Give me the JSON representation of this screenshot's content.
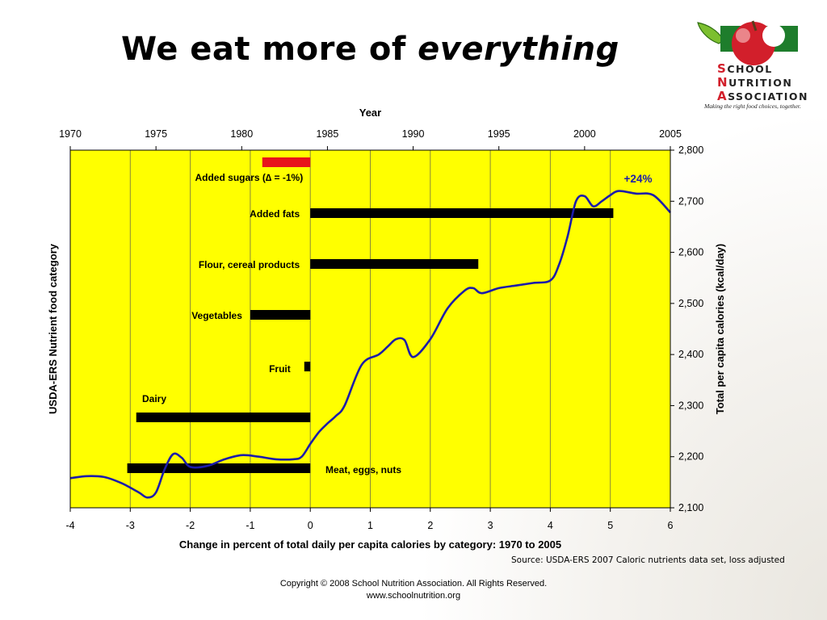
{
  "slide": {
    "title_prefix": "We eat more of ",
    "title_emphasis": "everything",
    "logo_lines": [
      {
        "cap": "S",
        "rest": "CHOOL"
      },
      {
        "cap": "N",
        "rest": "UTRITION"
      },
      {
        "cap": "A",
        "rest": "SSOCIATION"
      }
    ],
    "logo_tagline": "Making the right food choices, together.",
    "source": "Source: USDA-ERS 2007 Caloric nutrients data set, loss adjusted",
    "copyright": "Copyright © 2008 School Nutrition Association.  All Rights Reserved.",
    "website": "www.schoolnutrition.org"
  },
  "chart_data": {
    "type": "bar",
    "background_color": "#ffff00",
    "grid": true,
    "bars": {
      "orientation": "horizontal",
      "xlabel": "Change in percent of total daily per capita calories by category: 1970 to 2005",
      "ylabel": "USDA-ERS Nutrient food category",
      "xlim": [
        -4,
        6
      ],
      "xticks": [
        "-4",
        "-3",
        "-2",
        "-1",
        "0",
        "1",
        "2",
        "3",
        "4",
        "5",
        "6"
      ],
      "categories": [
        {
          "label": "Added sugars (∆ = -1%)",
          "value": -0.8,
          "color": "#e8141b"
        },
        {
          "label": "Added fats",
          "value": 5.05,
          "color": "#000000"
        },
        {
          "label": "Flour, cereal products",
          "value": 2.8,
          "color": "#000000"
        },
        {
          "label": "Vegetables",
          "value": -1.0,
          "color": "#000000"
        },
        {
          "label": "Fruit",
          "value": -0.1,
          "color": "#000000"
        },
        {
          "label": "Dairy",
          "value": -2.9,
          "color": "#000000"
        },
        {
          "label": "Meat, eggs, nuts",
          "value": -3.05,
          "color": "#000000"
        }
      ]
    },
    "line": {
      "xlabel": "Year",
      "ylabel": "Total per capita calories (kcal/day)",
      "xlim": [
        1970,
        2005
      ],
      "xticks": [
        "1970",
        "1975",
        "1980",
        "1985",
        "1990",
        "1995",
        "2000",
        "2005"
      ],
      "ylim": [
        2100,
        2800
      ],
      "yticks": [
        "2,100",
        "2,200",
        "2,300",
        "2,400",
        "2,500",
        "2,600",
        "2,700",
        "2,800"
      ],
      "color": "#1c1caa",
      "annotation": "+24%",
      "x": [
        1970,
        1971,
        1972,
        1973,
        1974,
        1974.5,
        1975,
        1975.5,
        1976,
        1976.5,
        1977,
        1978,
        1979,
        1980,
        1981,
        1982,
        1983,
        1983.5,
        1984,
        1984.5,
        1985,
        1985.5,
        1986,
        1987,
        1988,
        1988.5,
        1989,
        1989.5,
        1990,
        1991,
        1992,
        1993,
        1993.5,
        1994,
        1995,
        1996,
        1997,
        1998,
        1998.5,
        1999,
        1999.5,
        2000,
        2000.5,
        2001,
        2001.5,
        2002,
        2003,
        2004,
        2005
      ],
      "y": [
        2158,
        2162,
        2160,
        2148,
        2130,
        2120,
        2130,
        2175,
        2205,
        2198,
        2180,
        2182,
        2195,
        2203,
        2200,
        2195,
        2195,
        2200,
        2225,
        2248,
        2265,
        2280,
        2300,
        2380,
        2400,
        2415,
        2430,
        2428,
        2395,
        2430,
        2490,
        2525,
        2530,
        2520,
        2530,
        2535,
        2540,
        2545,
        2575,
        2630,
        2700,
        2710,
        2690,
        2700,
        2712,
        2720,
        2715,
        2712,
        2678
      ]
    }
  }
}
